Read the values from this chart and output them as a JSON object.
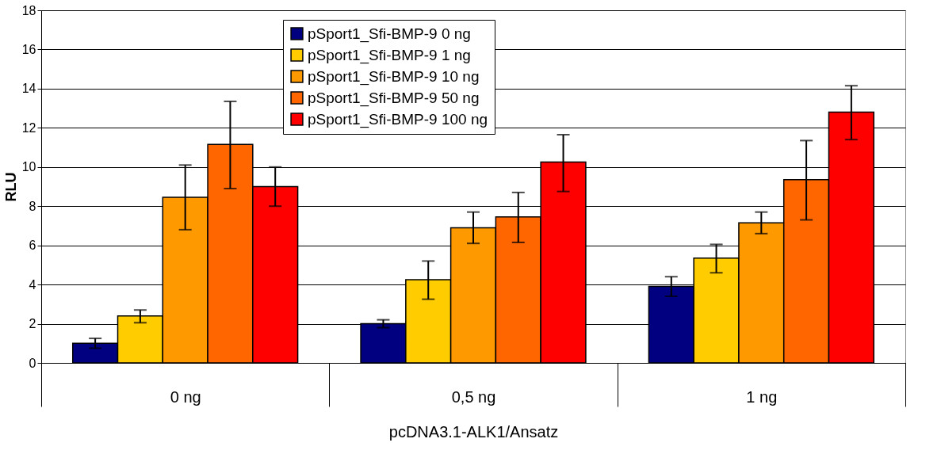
{
  "chart_data": {
    "type": "bar",
    "categories": [
      "0 ng",
      "0,5 ng",
      "1 ng"
    ],
    "xlabel": "pcDNA3.1-ALK1/Ansatz",
    "ylabel": "RLU",
    "ylim": [
      0,
      18
    ],
    "yticks": [
      0,
      2,
      4,
      6,
      8,
      10,
      12,
      14,
      16,
      18
    ],
    "grid": "y",
    "legend": "top",
    "series": [
      {
        "name": "pSport1_Sfi-BMP-9 0 ng",
        "color": "#000080",
        "values": [
          1.0,
          2.0,
          3.9
        ],
        "errors": [
          [
            0.75,
            1.25
          ],
          [
            1.8,
            2.2
          ],
          [
            3.4,
            4.4
          ]
        ]
      },
      {
        "name": "pSport1_Sfi-BMP-9 1 ng",
        "color": "#ffcc00",
        "values": [
          2.4,
          4.25,
          5.35
        ],
        "errors": [
          [
            2.05,
            2.7
          ],
          [
            3.25,
            5.2
          ],
          [
            4.6,
            6.05
          ]
        ]
      },
      {
        "name": "pSport1_Sfi-BMP-9 10 ng",
        "color": "#ff9900",
        "values": [
          8.45,
          6.9,
          7.15
        ],
        "errors": [
          [
            6.8,
            10.1
          ],
          [
            6.1,
            7.7
          ],
          [
            6.6,
            7.7
          ]
        ]
      },
      {
        "name": "pSport1_Sfi-BMP-9 50 ng",
        "color": "#ff6600",
        "values": [
          11.15,
          7.45,
          9.35
        ],
        "errors": [
          [
            8.9,
            13.35
          ],
          [
            6.15,
            8.7
          ],
          [
            7.3,
            11.35
          ]
        ]
      },
      {
        "name": "pSport1_Sfi-BMP-9 100 ng",
        "color": "#ff0000",
        "values": [
          9.0,
          10.25,
          12.8
        ],
        "errors": [
          [
            8.0,
            10.0
          ],
          [
            8.75,
            11.65
          ],
          [
            11.4,
            14.15
          ]
        ]
      }
    ]
  }
}
